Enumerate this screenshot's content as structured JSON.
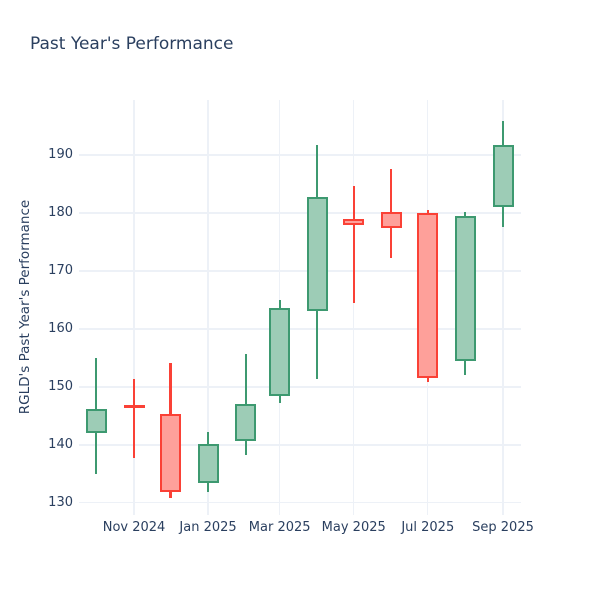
{
  "title": "Past Year's Performance",
  "y_axis_title": "RGLD's Past Year's Performance",
  "colors": {
    "text": "#2a3f5f",
    "grid": "#edf1f7",
    "background": "#ffffff",
    "increasing_line": "#3d9970",
    "increasing_fill": "#9dccb6",
    "decreasing_line": "#fa4136",
    "decreasing_fill": "#fea09a"
  },
  "chart_data": {
    "type": "candlestick",
    "title": "Past Year's Performance",
    "xlabel": "",
    "ylabel": "RGLD's Past Year's Performance",
    "ylim": [
      128.0,
      199.5
    ],
    "y_ticks": [
      130,
      140,
      150,
      160,
      170,
      180,
      190
    ],
    "x_ticks": [
      "Nov 2024",
      "Jan 2025",
      "Mar 2025",
      "May 2025",
      "Jul 2025",
      "Sep 2025"
    ],
    "grid": true,
    "legend_position": "none",
    "categories": [
      "Oct 2024",
      "Nov 2024",
      "Dec 2024",
      "Jan 2025",
      "Feb 2025",
      "Mar 2025",
      "Apr 2025",
      "May 2025",
      "Jun 2025",
      "Jul 2025",
      "Aug 2025",
      "Sep 2025"
    ],
    "candles": [
      {
        "month": "Oct 2024",
        "open": 142.0,
        "high": 155.0,
        "low": 135.0,
        "close": 146.2,
        "direction": "up"
      },
      {
        "month": "Nov 2024",
        "open": 146.6,
        "high": 151.4,
        "low": 137.7,
        "close": 146.3,
        "direction": "down"
      },
      {
        "month": "Dec 2024",
        "open": 145.3,
        "high": 154.2,
        "low": 130.9,
        "close": 131.9,
        "direction": "down"
      },
      {
        "month": "Jan 2025",
        "open": 133.4,
        "high": 142.3,
        "low": 131.9,
        "close": 140.1,
        "direction": "up"
      },
      {
        "month": "Feb 2025",
        "open": 140.7,
        "high": 155.7,
        "low": 138.3,
        "close": 147.0,
        "direction": "up"
      },
      {
        "month": "Mar 2025",
        "open": 148.4,
        "high": 165.0,
        "low": 147.2,
        "close": 163.7,
        "direction": "up"
      },
      {
        "month": "Apr 2025",
        "open": 163.1,
        "high": 191.7,
        "low": 151.3,
        "close": 182.7,
        "direction": "up"
      },
      {
        "month": "May 2025",
        "open": 179.0,
        "high": 184.7,
        "low": 164.4,
        "close": 177.9,
        "direction": "down"
      },
      {
        "month": "Jun 2025",
        "open": 180.2,
        "high": 187.6,
        "low": 172.2,
        "close": 177.5,
        "direction": "down"
      },
      {
        "month": "Jul 2025",
        "open": 180.0,
        "high": 180.6,
        "low": 150.8,
        "close": 151.5,
        "direction": "down"
      },
      {
        "month": "Aug 2025",
        "open": 154.5,
        "high": 180.2,
        "low": 152.0,
        "close": 179.5,
        "direction": "up"
      },
      {
        "month": "Sep 2025",
        "open": 181.0,
        "high": 195.8,
        "low": 177.6,
        "close": 191.7,
        "direction": "up"
      }
    ]
  }
}
